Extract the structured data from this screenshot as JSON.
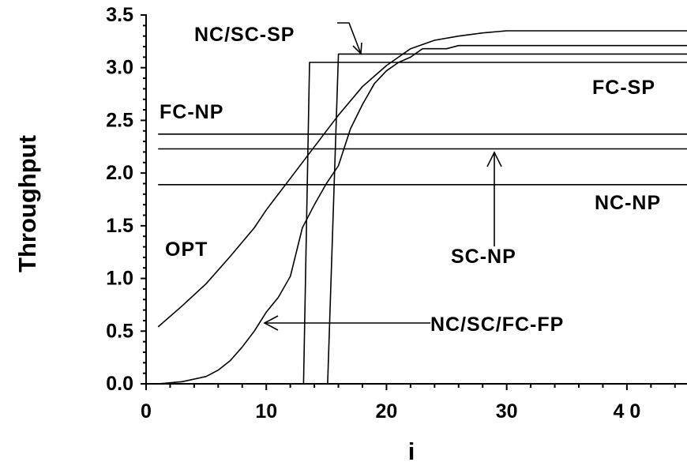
{
  "chart_data": {
    "type": "line",
    "title": "",
    "xlabel": "i",
    "ylabel": "Throughput",
    "xlim": [
      0,
      45
    ],
    "ylim": [
      0,
      3.5
    ],
    "x_ticks": [
      0,
      10,
      20,
      30,
      40
    ],
    "x_tick_labels": [
      "0",
      "10",
      "20",
      "30",
      "4 0"
    ],
    "y_ticks": [
      0,
      0.5,
      1.0,
      1.5,
      2.0,
      2.5,
      3.0,
      3.5
    ],
    "y_tick_labels": [
      "0.0",
      "0.5",
      "1.0",
      "1.5",
      "2.0",
      "2.5",
      "3.0",
      "3.5"
    ],
    "grid": false,
    "series": [
      {
        "name": "OPT",
        "x": [
          1,
          3,
          5,
          7,
          9,
          10,
          12,
          14,
          16,
          18,
          20,
          22,
          24,
          26,
          28,
          30,
          35,
          40,
          45
        ],
        "y": [
          0.54,
          0.74,
          0.95,
          1.21,
          1.48,
          1.65,
          1.95,
          2.25,
          2.55,
          2.82,
          3.02,
          3.18,
          3.26,
          3.3,
          3.33,
          3.35,
          3.35,
          3.35,
          3.35
        ]
      },
      {
        "name": "NC/SC/FC-FP",
        "x": [
          1,
          3,
          5,
          6,
          7,
          8,
          9,
          10,
          11,
          12,
          13,
          14,
          15,
          16,
          17,
          18,
          19,
          20,
          21,
          22,
          23,
          25,
          26,
          27,
          28,
          29,
          35,
          40,
          45
        ],
        "y": [
          0.0,
          0.02,
          0.07,
          0.13,
          0.22,
          0.35,
          0.5,
          0.68,
          0.82,
          1.02,
          1.48,
          1.7,
          1.9,
          2.07,
          2.42,
          2.65,
          2.85,
          2.97,
          3.05,
          3.1,
          3.18,
          3.18,
          3.21,
          3.21,
          3.21,
          3.21,
          3.21,
          3.21,
          3.21
        ]
      },
      {
        "name": "FC-SP",
        "x": [
          1,
          13.1,
          13.6,
          45
        ],
        "y": [
          0.0,
          0.0,
          3.05,
          3.05
        ]
      },
      {
        "name": "NC/SC-SP",
        "x": [
          1,
          15.1,
          16.0,
          45
        ],
        "y": [
          0.0,
          0.0,
          3.13,
          3.13
        ]
      },
      {
        "name": "FC-NP",
        "x": [
          1,
          45
        ],
        "y": [
          2.37,
          2.37
        ]
      },
      {
        "name": "SC-NP",
        "x": [
          1,
          45
        ],
        "y": [
          2.23,
          2.23
        ]
      },
      {
        "name": "NC-NP",
        "x": [
          1,
          45
        ],
        "y": [
          1.89,
          1.89
        ]
      }
    ],
    "annotations": [
      "NC/SC-SP",
      "FC-SP",
      "FC-NP",
      "NC-NP",
      "SC-NP",
      "OPT",
      "NC/SC/FC-FP"
    ]
  }
}
